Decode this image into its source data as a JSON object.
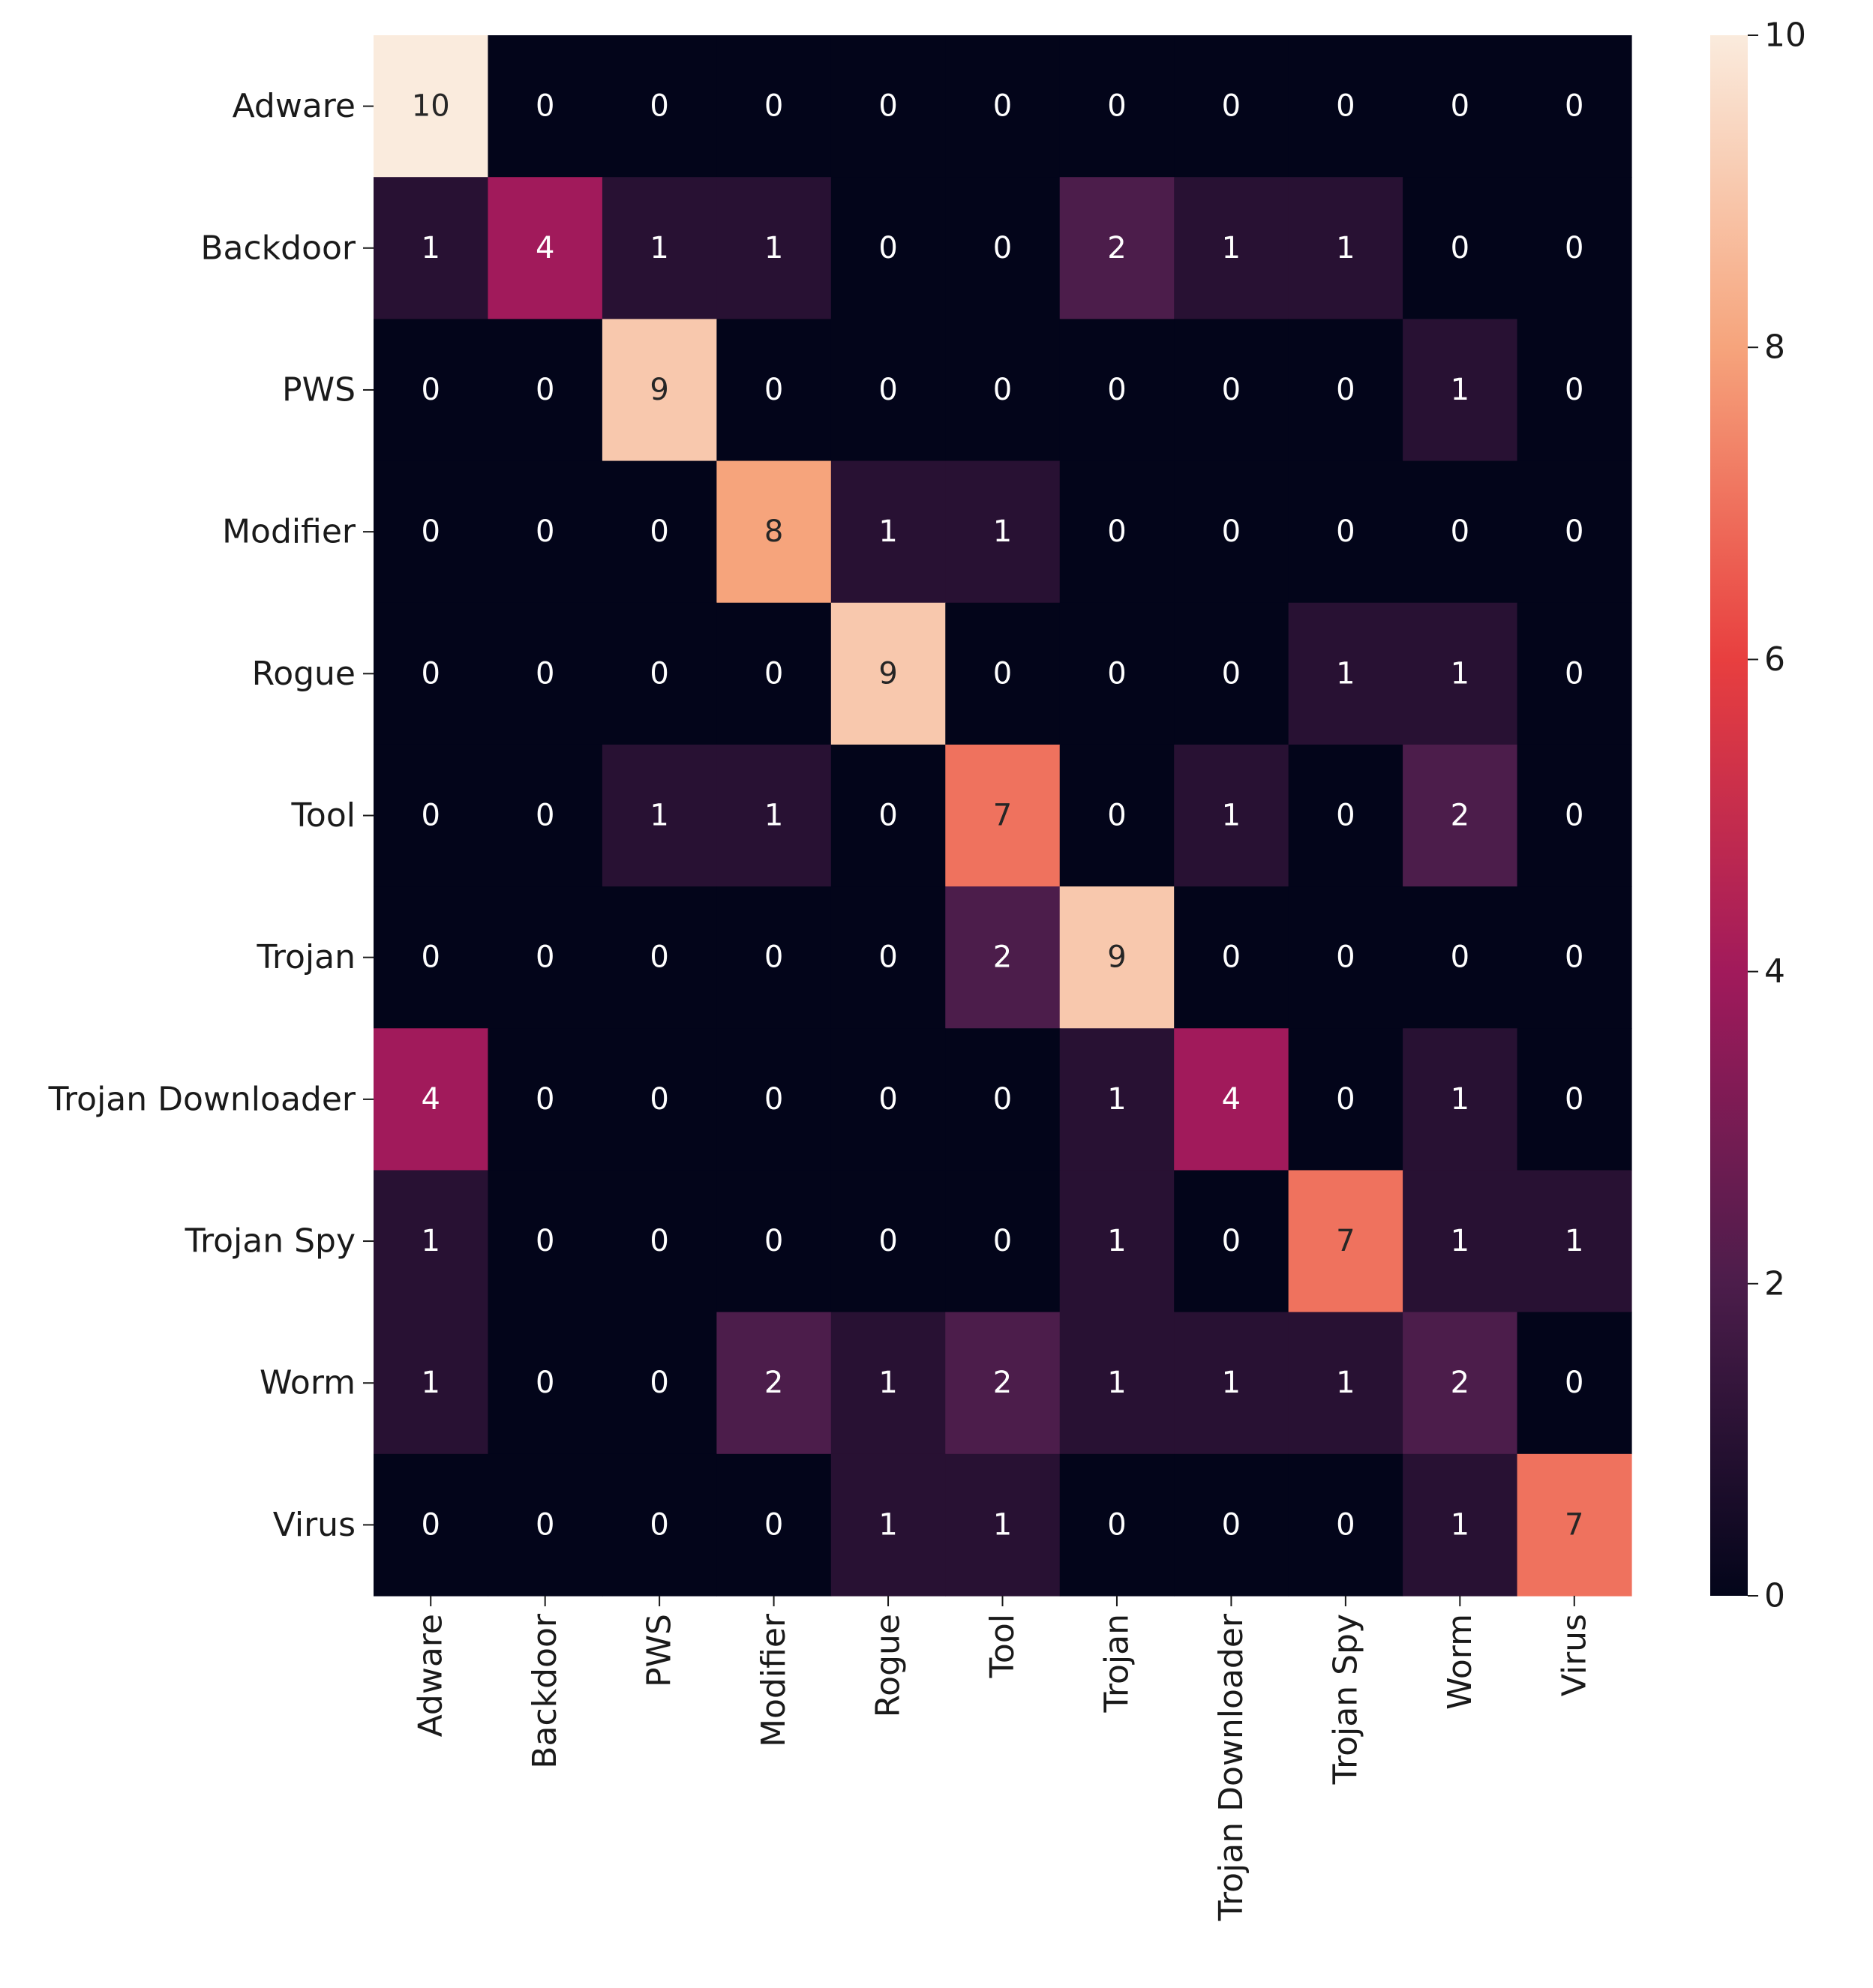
{
  "chart_data": {
    "type": "heatmap",
    "title": "",
    "xlabel": "",
    "ylabel": "",
    "x_categories": [
      "Adware",
      "Backdoor",
      "PWS",
      "Modifier",
      "Rogue",
      "Tool",
      "Trojan",
      "Trojan Downloader",
      "Trojan Spy",
      "Worm",
      "Virus"
    ],
    "y_categories": [
      "Adware",
      "Backdoor",
      "PWS",
      "Modifier",
      "Rogue",
      "Tool",
      "Trojan",
      "Trojan Downloader",
      "Trojan Spy",
      "Worm",
      "Virus"
    ],
    "values": [
      [
        10,
        0,
        0,
        0,
        0,
        0,
        0,
        0,
        0,
        0,
        0
      ],
      [
        1,
        4,
        1,
        1,
        0,
        0,
        2,
        1,
        1,
        0,
        0
      ],
      [
        0,
        0,
        9,
        0,
        0,
        0,
        0,
        0,
        0,
        1,
        0
      ],
      [
        0,
        0,
        0,
        8,
        1,
        1,
        0,
        0,
        0,
        0,
        0
      ],
      [
        0,
        0,
        0,
        0,
        9,
        0,
        0,
        0,
        1,
        1,
        0
      ],
      [
        0,
        0,
        1,
        1,
        0,
        7,
        0,
        1,
        0,
        2,
        0
      ],
      [
        0,
        0,
        0,
        0,
        0,
        2,
        9,
        0,
        0,
        0,
        0
      ],
      [
        4,
        0,
        0,
        0,
        0,
        0,
        1,
        4,
        0,
        1,
        0
      ],
      [
        1,
        0,
        0,
        0,
        0,
        0,
        1,
        0,
        7,
        1,
        1
      ],
      [
        1,
        0,
        0,
        2,
        1,
        2,
        1,
        1,
        1,
        2,
        0
      ],
      [
        0,
        0,
        0,
        0,
        1,
        1,
        0,
        0,
        0,
        1,
        7
      ]
    ],
    "annotated": true,
    "colorbar": {
      "range": [
        0,
        10
      ],
      "ticks": [
        0,
        2,
        4,
        6,
        8,
        10
      ],
      "colormap": "rocket",
      "stops": [
        "#03051a",
        "#4c1d4b",
        "#a11a5b",
        "#e83f3f",
        "#f6a47c",
        "#faebdd"
      ]
    }
  }
}
